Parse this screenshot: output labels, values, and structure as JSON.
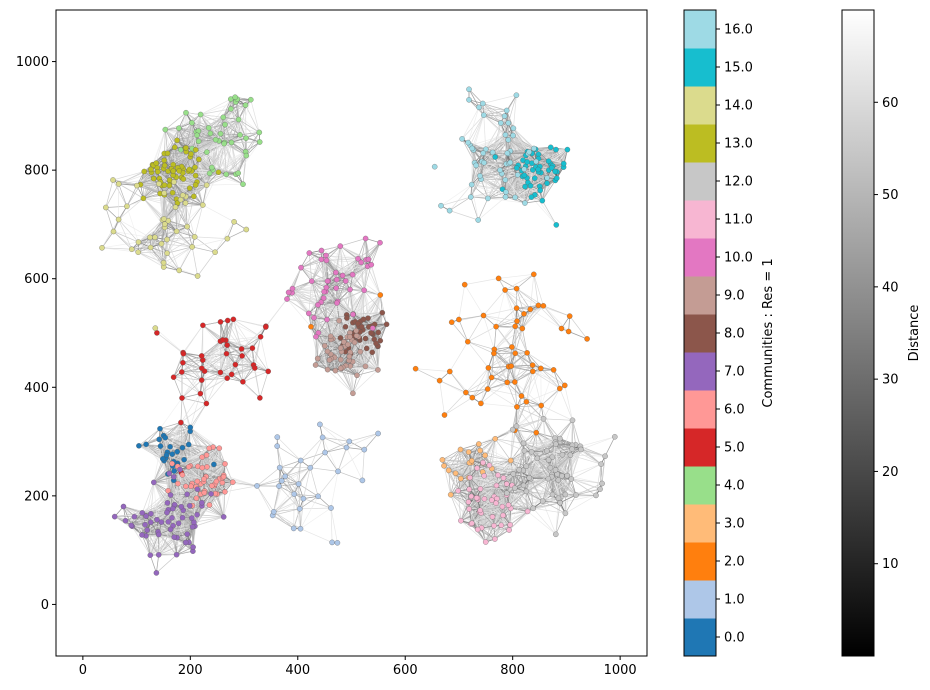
{
  "chart_data": [
    {
      "type": "scatter",
      "subtype": "network-graph",
      "title": "",
      "xlabel": "",
      "ylabel": "",
      "xlim": [
        -50,
        1050
      ],
      "ylim": [
        -95,
        1095
      ],
      "xticks": [
        0,
        200,
        400,
        600,
        800,
        1000
      ],
      "yticks": [
        0,
        200,
        400,
        600,
        800,
        1000
      ],
      "grid": false,
      "edge_color_map": "gray (darker = shorter distance)",
      "communities": [
        {
          "id": 0,
          "color": "#1f77b4",
          "center": [
            160,
            280
          ],
          "spread": 55,
          "count": 28
        },
        {
          "id": 1,
          "color": "#aec7e8",
          "center": [
            450,
            220
          ],
          "spread": 120,
          "count": 30
        },
        {
          "id": 2,
          "color": "#ff7f0e",
          "center": [
            780,
            470
          ],
          "spread": 160,
          "count": 55
        },
        {
          "id": 3,
          "color": "#ffbb78",
          "center": [
            720,
            260
          ],
          "spread": 60,
          "count": 20
        },
        {
          "id": 4,
          "color": "#98df8a",
          "center": [
            260,
            860
          ],
          "spread": 90,
          "count": 45
        },
        {
          "id": 5,
          "color": "#d62728",
          "center": [
            260,
            450
          ],
          "spread": 90,
          "count": 40
        },
        {
          "id": 6,
          "color": "#ff9896",
          "center": [
            220,
            230
          ],
          "spread": 45,
          "count": 45
        },
        {
          "id": 7,
          "color": "#9467bd",
          "center": [
            170,
            160
          ],
          "spread": 80,
          "count": 60
        },
        {
          "id": 8,
          "color": "#8c564b",
          "center": [
            520,
            500
          ],
          "spread": 35,
          "count": 45
        },
        {
          "id": 9,
          "color": "#c49c94",
          "center": [
            480,
            460
          ],
          "spread": 45,
          "count": 45
        },
        {
          "id": 10,
          "color": "#e377c2",
          "center": [
            470,
            590
          ],
          "spread": 70,
          "count": 45
        },
        {
          "id": 11,
          "color": "#f7b6d2",
          "center": [
            760,
            180
          ],
          "spread": 70,
          "count": 45
        },
        {
          "id": 12,
          "color": "#c7c7c7",
          "center": [
            880,
            250
          ],
          "spread": 80,
          "count": 60
        },
        {
          "id": 13,
          "color": "#bcbd22",
          "center": [
            170,
            800
          ],
          "spread": 50,
          "count": 60
        },
        {
          "id": 14,
          "color": "#dbdb8d",
          "center": [
            160,
            700
          ],
          "spread": 90,
          "count": 45
        },
        {
          "id": 15,
          "color": "#17becf",
          "center": [
            840,
            790
          ],
          "spread": 55,
          "count": 50
        },
        {
          "id": 16,
          "color": "#9edae5",
          "center": [
            770,
            830
          ],
          "spread": 90,
          "count": 55
        }
      ]
    },
    {
      "type": "colorbar",
      "label": "Communities : Res = 1",
      "tick_labels": [
        "0.0",
        "1.0",
        "2.0",
        "3.0",
        "4.0",
        "5.0",
        "6.0",
        "7.0",
        "8.0",
        "9.0",
        "10.0",
        "11.0",
        "12.0",
        "13.0",
        "14.0",
        "15.0",
        "16.0"
      ],
      "colors": [
        "#1f77b4",
        "#aec7e8",
        "#ff7f0e",
        "#ffbb78",
        "#98df8a",
        "#d62728",
        "#ff9896",
        "#9467bd",
        "#8c564b",
        "#c49c94",
        "#e377c2",
        "#f7b6d2",
        "#c7c7c7",
        "#bcbd22",
        "#dbdb8d",
        "#17becf",
        "#9edae5"
      ]
    },
    {
      "type": "colorbar",
      "label": "Distance",
      "range": [
        0,
        70
      ],
      "ticks": [
        10,
        20,
        30,
        40,
        50,
        60
      ],
      "tick_labels": [
        "10",
        "20",
        "30",
        "40",
        "50",
        "60"
      ],
      "colormap": "gray"
    }
  ]
}
